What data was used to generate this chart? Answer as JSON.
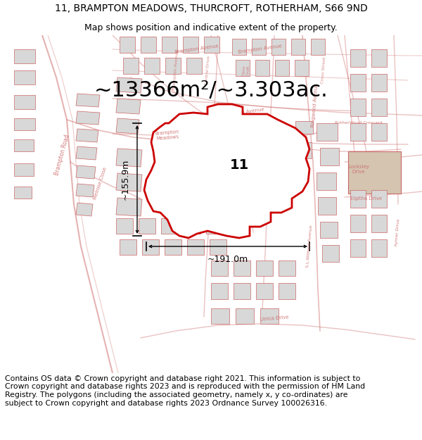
{
  "title_line1": "11, BRAMPTON MEADOWS, THURCROFT, ROTHERHAM, S66 9ND",
  "title_line2": "Map shows position and indicative extent of the property.",
  "area_text": "~13366m²/~3.303ac.",
  "label_11": "11",
  "dim_width": "~191.0m",
  "dim_height": "~155.9m",
  "footer_text": "Contains OS data © Crown copyright and database right 2021. This information is subject to Crown copyright and database rights 2023 and is reproduced with the permission of HM Land Registry. The polygons (including the associated geometry, namely x, y co-ordinates) are subject to Crown copyright and database rights 2023 Ordnance Survey 100026316.",
  "bg_color": "#ffffff",
  "map_bg": "#ffffff",
  "building_fill": "#d8d8d8",
  "building_edge": "#cc6666",
  "road_edge": "#cc6666",
  "property_fill": "#ffffff",
  "property_edge": "#cc0000",
  "fig_width": 6.0,
  "fig_height": 6.25,
  "title_fontsize": 10,
  "subtitle_fontsize": 9,
  "area_fontsize": 22,
  "footer_fontsize": 7.8,
  "dim_fontsize": 9,
  "road_label_fontsize": 5.5,
  "label_color": "#cc6666"
}
